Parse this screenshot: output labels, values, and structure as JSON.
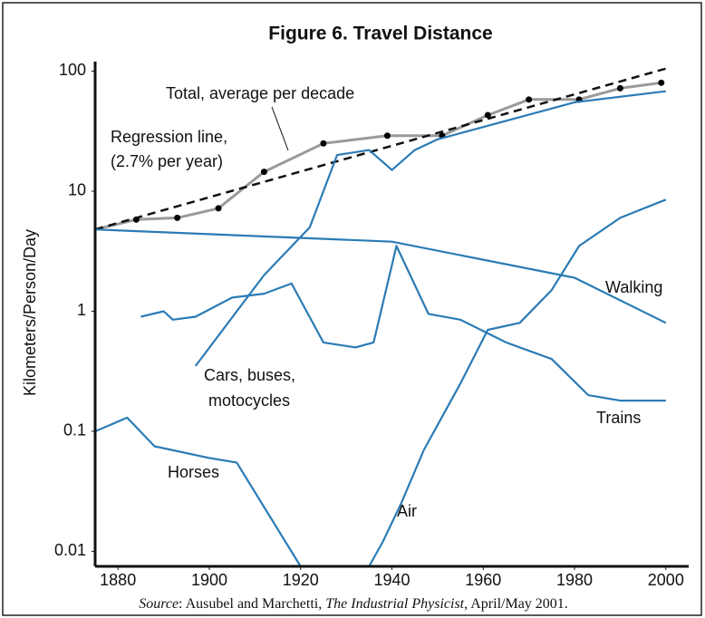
{
  "chart_data": {
    "type": "line",
    "title": "Figure 6. Travel Distance",
    "y_label": "Kilometers/Person/Day",
    "log_y": true,
    "xlim": [
      1875,
      2005
    ],
    "xticks": [
      1880,
      1900,
      1920,
      1940,
      1960,
      1980,
      2000
    ],
    "ylim": [
      0.0075,
      120
    ],
    "yticks": [
      0.01,
      0.1,
      1,
      10,
      100
    ],
    "series": [
      {
        "name": "Total, average per decade",
        "color": "#9a9a9a",
        "markers": true,
        "x": [
          1875,
          1884,
          1893,
          1902,
          1912,
          1925,
          1939,
          1951,
          1961,
          1970,
          1981,
          1990,
          1999
        ],
        "values": [
          4.8,
          5.8,
          6,
          7.2,
          14.5,
          25,
          29,
          29,
          43,
          58,
          58,
          72,
          80
        ]
      },
      {
        "name": "Regression line, (2.7% per year)",
        "color": "#111111",
        "dashed": true,
        "x": [
          1875,
          2000
        ],
        "values": [
          4.8,
          105
        ]
      },
      {
        "name": "Cars, buses, motocycles",
        "color": "#2b7bb5",
        "x": [
          1897,
          1912,
          1922,
          1928,
          1935,
          1940,
          1945,
          1950,
          1980,
          2000
        ],
        "values": [
          0.35,
          2,
          5,
          20,
          22,
          15,
          22,
          27,
          55,
          68
        ]
      },
      {
        "name": "Walking",
        "color": "#2b7bb5",
        "x": [
          1875,
          1940,
          1980,
          2000
        ],
        "values": [
          4.8,
          3.8,
          1.9,
          0.8
        ]
      },
      {
        "name": "Trains",
        "color": "#2b7bb5",
        "x": [
          1885,
          1890,
          1892,
          1897,
          1905,
          1912,
          1918,
          1925,
          1932,
          1936,
          1941,
          1948,
          1955,
          1965,
          1975,
          1983,
          1990,
          2000
        ],
        "values": [
          0.9,
          1.0,
          0.85,
          0.9,
          1.3,
          1.4,
          1.7,
          0.55,
          0.5,
          0.55,
          3.5,
          0.95,
          0.85,
          0.55,
          0.4,
          0.2,
          0.18,
          0.18
        ]
      },
      {
        "name": "Horses",
        "color": "#2b7bb5",
        "x": [
          1875,
          1882,
          1888,
          1900,
          1906,
          1920
        ],
        "values": [
          0.1,
          0.13,
          0.075,
          0.06,
          0.055,
          0.0075
        ]
      },
      {
        "name": "Air",
        "color": "#2b7bb5",
        "x": [
          1935,
          1938,
          1942,
          1947,
          1955,
          1961,
          1968,
          1975,
          1981,
          1990,
          2000
        ],
        "values": [
          0.0075,
          0.012,
          0.025,
          0.07,
          0.25,
          0.7,
          0.8,
          1.5,
          3.5,
          6,
          8.5
        ]
      }
    ],
    "source": {
      "label": "Source",
      "text": ": Ausubel and Marchetti, ",
      "journal": "The Industrial Physicist",
      "date": ", April/May 2001."
    }
  }
}
